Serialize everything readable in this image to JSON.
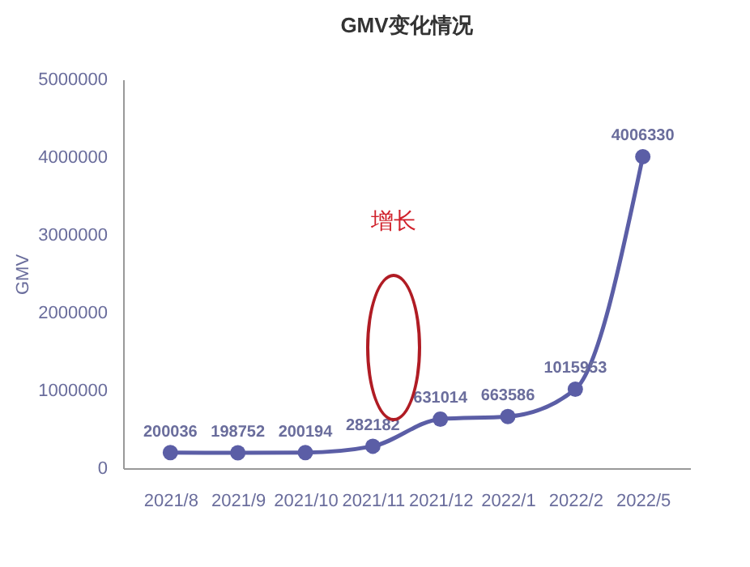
{
  "chart_data": {
    "type": "line",
    "title": "GMV变化情况",
    "ylabel": "GMV",
    "categories": [
      "2021/8",
      "2021/9",
      "2021/10",
      "2021/11",
      "2021/12",
      "2022/1",
      "2022/2",
      "2022/5"
    ],
    "series": [
      {
        "color": "#5b5ea6",
        "values": [
          200036,
          198752,
          200194,
          282182,
          631014,
          663586,
          1015953,
          4006330
        ]
      }
    ],
    "ylim": [
      0,
      5000000
    ],
    "yticks": [
      0,
      1000000,
      2000000,
      3000000,
      4000000,
      5000000
    ],
    "data_labels": true,
    "marker": "circle",
    "grid": false,
    "annotations": [
      "增长"
    ]
  }
}
